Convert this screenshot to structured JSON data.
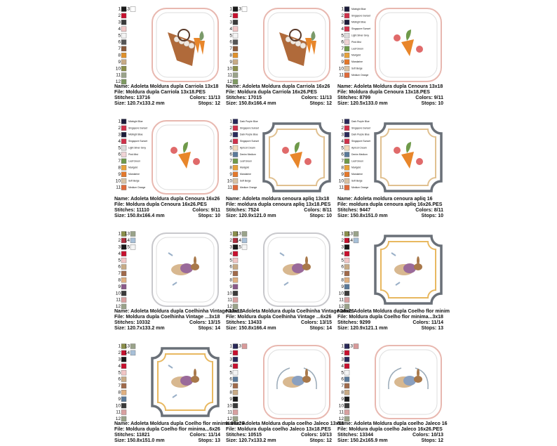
{
  "labels": {
    "name": "Name:",
    "file": "File:",
    "stitches": "Stitches:",
    "size": "Size:",
    "colors": "Colors:",
    "stops": "Stops:"
  },
  "palettes": [
    {
      "swatches": [
        {
          "n": 1,
          "color": "#1a1a1a"
        },
        {
          "n": 2,
          "color": "#c8102e"
        },
        {
          "n": 3,
          "color": "#3a3a3a"
        },
        {
          "n": 4,
          "color": "#f2c6c6"
        },
        {
          "n": 5,
          "color": "#f4f4f4"
        },
        {
          "n": 6,
          "color": "#555555"
        },
        {
          "n": 7,
          "color": "#8a5a3b"
        },
        {
          "n": 8,
          "color": "#e0902a"
        },
        {
          "n": 9,
          "color": "#c8ab86"
        },
        {
          "n": 10,
          "color": "#8b8f4a"
        },
        {
          "n": 11,
          "color": "#9aa38a"
        },
        {
          "n": 12,
          "color": "#7f9a62"
        },
        {
          "n": 13,
          "color": "#ffffff"
        }
      ]
    },
    {
      "swatches": [
        {
          "n": 1,
          "color": "#1c1c3a",
          "name": "Midnight Blue"
        },
        {
          "n": 2,
          "color": "#d0314a",
          "name": "Singapore Sunset"
        },
        {
          "n": 3,
          "color": "#1c1c3a",
          "name": "Midnight Blue"
        },
        {
          "n": 4,
          "color": "#d0314a",
          "name": "Singapore Sunset"
        },
        {
          "n": 5,
          "color": "#dcdcdc",
          "name": "Light Silver Grey"
        },
        {
          "n": 6,
          "color": "#f1d4d6",
          "name": "Pink Mist"
        },
        {
          "n": 7,
          "color": "#6f9a4a",
          "name": "Leaf Green"
        },
        {
          "n": 8,
          "color": "#e8a23a",
          "name": "Marigold"
        },
        {
          "n": 9,
          "color": "#e4782a",
          "name": "Mandarine"
        },
        {
          "n": 10,
          "color": "#d8c2a4",
          "name": "Soft Beige"
        },
        {
          "n": 11,
          "color": "#e06a3a",
          "name": "Medium Orange"
        }
      ]
    },
    {
      "swatches": [
        {
          "n": 1,
          "color": "#2a2a5a",
          "name": "Dark Purple Blue"
        },
        {
          "n": 2,
          "color": "#d0314a",
          "name": "Singapore Sunset"
        },
        {
          "n": 3,
          "color": "#2a2a5a",
          "name": "Dark Purple Blue"
        },
        {
          "n": 4,
          "color": "#d0314a",
          "name": "Singapore Sunset"
        },
        {
          "n": 5,
          "color": "#f2d8b8",
          "name": "Apricot Cream"
        },
        {
          "n": 6,
          "color": "#5a7a9a",
          "name": "Denim Medium"
        },
        {
          "n": 7,
          "color": "#6f9a4a",
          "name": "Leaf Green"
        },
        {
          "n": 8,
          "color": "#e8a23a",
          "name": "Marigold"
        },
        {
          "n": 9,
          "color": "#e4782a",
          "name": "Mandarine"
        },
        {
          "n": 10,
          "color": "#d8c2a4",
          "name": "Soft Beige"
        },
        {
          "n": 11,
          "color": "#e06a3a",
          "name": "Medium Orange"
        }
      ]
    },
    {
      "swatches": [
        {
          "n": 1,
          "color": "#8b8f4a"
        },
        {
          "n": 2,
          "color": "#b03040"
        },
        {
          "n": 3,
          "color": "#1a1a1a"
        },
        {
          "n": 4,
          "color": "#c8102e"
        },
        {
          "n": 5,
          "color": "#f2c6c6"
        },
        {
          "n": 6,
          "color": "#c8ab86"
        },
        {
          "n": 7,
          "color": "#a06a4a"
        },
        {
          "n": 8,
          "color": "#e0b080"
        },
        {
          "n": 9,
          "color": "#8a5a8a"
        },
        {
          "n": 10,
          "color": "#3a3a3a"
        },
        {
          "n": 11,
          "color": "#d8a0a0"
        },
        {
          "n": 12,
          "color": "#9aa38a"
        },
        {
          "n": 13,
          "color": "#9aa38a"
        },
        {
          "n": 14,
          "color": "#a8c0d8"
        },
        {
          "n": 15,
          "color": "#f4f4f4"
        }
      ]
    },
    {
      "swatches": [
        {
          "n": 1,
          "color": "#8b8f4a"
        },
        {
          "n": 2,
          "color": "#c8102e"
        },
        {
          "n": 3,
          "color": "#1a1a1a"
        },
        {
          "n": 4,
          "color": "#c8102e"
        },
        {
          "n": 5,
          "color": "#f2c6c6"
        },
        {
          "n": 6,
          "color": "#c8ab86"
        },
        {
          "n": 7,
          "color": "#a06a4a"
        },
        {
          "n": 8,
          "color": "#e0b080"
        },
        {
          "n": 9,
          "color": "#5a7a9a"
        },
        {
          "n": 10,
          "color": "#3a3a3a"
        },
        {
          "n": 11,
          "color": "#d8a0a0"
        },
        {
          "n": 12,
          "color": "#9aa38a"
        },
        {
          "n": 13,
          "color": "#9aa38a"
        },
        {
          "n": 14,
          "color": "#a8c0d8"
        }
      ]
    },
    {
      "swatches": [
        {
          "n": 1,
          "color": "#2a2a5a"
        },
        {
          "n": 2,
          "color": "#c8102e"
        },
        {
          "n": 3,
          "color": "#2a2a5a"
        },
        {
          "n": 4,
          "color": "#c8102e"
        },
        {
          "n": 5,
          "color": "#f4f4f4"
        },
        {
          "n": 6,
          "color": "#5a7a9a"
        },
        {
          "n": 7,
          "color": "#a06a4a"
        },
        {
          "n": 8,
          "color": "#c8ab86"
        },
        {
          "n": 9,
          "color": "#1a1a1a"
        },
        {
          "n": 10,
          "color": "#3a3a3a"
        },
        {
          "n": 11,
          "color": "#d8a0a0"
        },
        {
          "n": 12,
          "color": "#9aa38a"
        },
        {
          "n": 13,
          "color": "#d89a9a"
        }
      ]
    }
  ],
  "cards": [
    {
      "palette": 0,
      "name": "Adoleta Moldura dupla Carriola 13x18",
      "file": "Moldura dupla Carriola 13x18.PES",
      "stitches": "13716",
      "colors": "11/13",
      "size": "120.7x133.2 mm",
      "stops": "12"
    },
    {
      "palette": 0,
      "name": "Adoleta Moldura dupla Carriola 16x26",
      "file": "Moldura dupla Carriola 16x26.PES",
      "stitches": "17015",
      "colors": "11/13",
      "size": "150.8x166.4 mm",
      "stops": "12"
    },
    {
      "palette": 1,
      "name": "Adoleta Moldura dupla Cenoura 13x18",
      "file": "Moldura dupla Cenoura 13x18.PES",
      "stitches": "8799",
      "colors": "9/11",
      "size": "120.5x133.0 mm",
      "stops": "10"
    },
    {
      "palette": 1,
      "name": "Adoleta Moldura dupla Cenoura 16x26",
      "file": "Moldura dupla Cenoura 16x26.PES",
      "stitches": "11110",
      "colors": "9/11",
      "size": "150.8x166.4 mm",
      "stops": "10"
    },
    {
      "palette": 2,
      "name": "Adoleta moldura cenoura apliq 13x18",
      "file": "moldura dupla cenoura apliq 13x18.PES",
      "stitches": "7524",
      "colors": "8/11",
      "size": "120.9x121.0 mm",
      "stops": "10"
    },
    {
      "palette": 2,
      "name": "Adoleta moldura cenoura apliq 16",
      "file": "moldura dupla cenoura apliq 16x26.PES",
      "stitches": "9447",
      "colors": "8/11",
      "size": "150.8x151.0 mm",
      "stops": "10"
    },
    {
      "palette": 3,
      "name": "Adoleta Moldura dupla Coelhinha Vintage 13x18",
      "file": "Moldura dupla Coelhinha Vintage ...3x18",
      "stitches": "10332",
      "colors": "13/15",
      "size": "120.7x133.2 mm",
      "stops": "14"
    },
    {
      "palette": 3,
      "name": "Adoleta Moldura dupla Coelhinha Vintage 16x26",
      "file": "Moldura dupla Coelhinha Vintage ...6x26",
      "stitches": "13433",
      "colors": "13/15",
      "size": "150.8x166.4 mm",
      "stops": "14"
    },
    {
      "palette": 4,
      "name": "Adoleta Moldura dupla Coelho flor minim",
      "file": "Moldura dupla Coelho flor minima...3x18",
      "stitches": "9299",
      "colors": "11/14",
      "size": "120.9x121.1 mm",
      "stops": "13"
    },
    {
      "palette": 4,
      "name": "Adoleta Moldura dupla Coelho flor minima 16x26",
      "file": "Moldura dupla Coelho flor minima...6x26",
      "stitches": "11821",
      "colors": "11/14",
      "size": "150.8x151.0 mm",
      "stops": "13"
    },
    {
      "palette": 5,
      "name": "Adoleta Moldura dupla coelho Jaleco 13x18",
      "file": "Moldura dupla coelho Jaleco 13x18.PES",
      "stitches": "10515",
      "colors": "10/13",
      "size": "120.7x133.2 mm",
      "stops": "12"
    },
    {
      "palette": 5,
      "name": "Adoleta Moldura dupla coelho Jaleco 16",
      "file": "Moldura dupla coelho Jaleco 16x26.PES",
      "stitches": "13344",
      "colors": "10/13",
      "size": "150.2x165.9 mm",
      "stops": "12"
    }
  ]
}
